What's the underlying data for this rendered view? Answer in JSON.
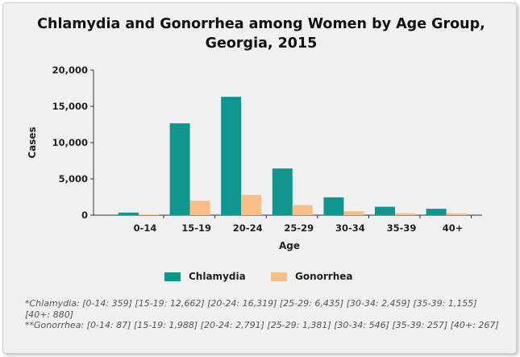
{
  "chart_data": {
    "type": "bar",
    "title": "Chlamydia and Gonorrhea among Women by Age Group, Georgia, 2015",
    "xlabel": "Age",
    "ylabel": "Cases",
    "categories": [
      "0-14",
      "15-19",
      "20-24",
      "25-29",
      "30-34",
      "35-39",
      "40+"
    ],
    "series": [
      {
        "name": "Chlamydia",
        "values": [
          359,
          12662,
          16319,
          6435,
          2459,
          1155,
          880
        ],
        "color": "#11968f"
      },
      {
        "name": "Gonorrhea",
        "values": [
          87,
          1988,
          2791,
          1381,
          546,
          257,
          267
        ],
        "color": "#f9be85"
      }
    ],
    "ylim": [
      0,
      20000
    ],
    "yticks": [
      "0",
      "5,000",
      "10,000",
      "15,000",
      "20,000"
    ],
    "yticks_values": [
      0,
      5000,
      10000,
      15000,
      20000
    ],
    "grid": false,
    "legend": "bottom"
  },
  "notes": {
    "chlamydia": "*Chlamydia: [0-14: 359] [15-19: 12,662] [20-24: 16,319] [25-29: 6,435] [30-34: 2,459] [35-39: 1,155] [40+: 880]",
    "gonorrhea": "**Gonorrhea: [0-14: 87] [15-19: 1,988] [20-24: 2,791] [25-29: 1,381] [30-34: 546] [35-39: 257] [40+: 267]"
  }
}
